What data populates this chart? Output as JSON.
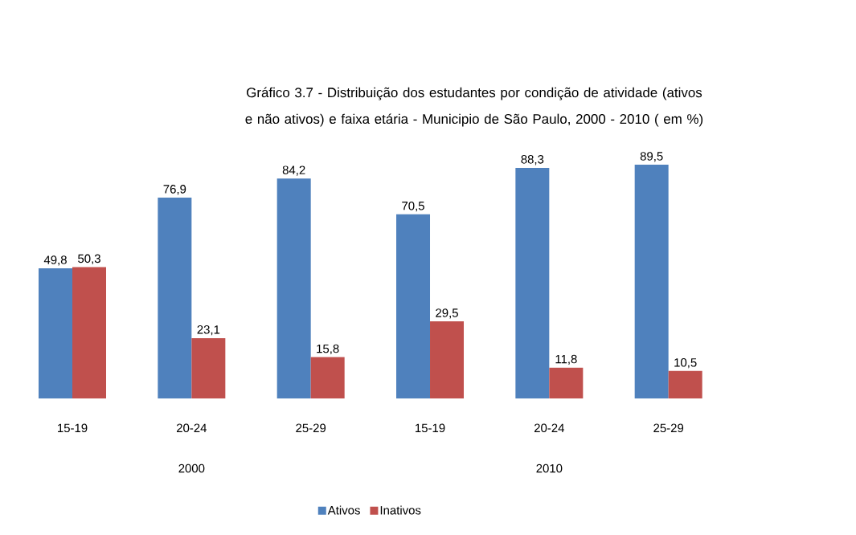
{
  "chart_data": {
    "type": "bar",
    "title": "Gráfico 3.7 - Distribuição dos estudantes por condição de atividade (ativos e não ativos) e faixa etária - Municipio de São Paulo, 2000 - 2010 ( em %)",
    "categories": [
      "15-19",
      "20-24",
      "25-29",
      "15-19",
      "20-24",
      "25-29"
    ],
    "series": [
      {
        "name": "Ativos",
        "color": "#4f81bd",
        "values": [
          49.8,
          76.9,
          84.2,
          70.5,
          88.3,
          89.5
        ],
        "value_labels": [
          "49,8",
          "76,9",
          "84,2",
          "70,5",
          "88,3",
          "89,5"
        ]
      },
      {
        "name": "Inativos",
        "color": "#c0504d",
        "values": [
          50.3,
          23.1,
          15.8,
          29.5,
          11.8,
          10.5
        ],
        "value_labels": [
          "50,3",
          "23,1",
          "15,8",
          "29,5",
          "11,8",
          "10,5"
        ]
      }
    ],
    "annotations": [
      "2000",
      "2010"
    ],
    "tick_labels": "x",
    "legend": "bottom"
  }
}
